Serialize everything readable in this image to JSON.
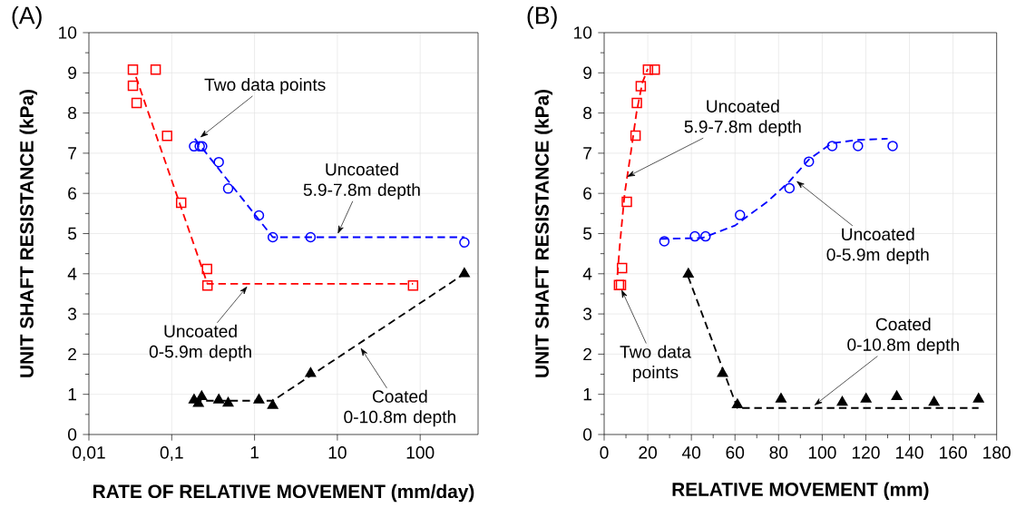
{
  "chart_data": [
    {
      "type": "scatter",
      "title": "(A)",
      "xlabel": "RATE OF RELATIVE MOVEMENT (mm/day)",
      "ylabel": "UNIT SHAFT RESISTANCE (kPa)",
      "log": "x",
      "grid": true,
      "xlim": [
        0.01,
        500
      ],
      "ylim": [
        0,
        10
      ],
      "xticks": [
        {
          "value": 0.01,
          "label": "0,01"
        },
        {
          "value": 0.1,
          "label": "0,1"
        },
        1,
        10,
        100
      ],
      "yticks": [
        0,
        1,
        2,
        3,
        4,
        5,
        6,
        7,
        8,
        9,
        10
      ],
      "series": [
        {
          "marker": "square",
          "color": "#ff0000",
          "x": [
            0.034,
            0.034,
            0.0377,
            0.064,
            0.088,
            0.13,
            0.267,
            0.27,
            82
          ],
          "values": [
            9.08,
            8.68,
            8.25,
            9.08,
            7.43,
            5.77,
            4.12,
            3.71,
            3.71
          ]
        },
        {
          "type": "line",
          "line_style": "dashed",
          "color": "#ff0000",
          "x": [
            0.037,
            0.27,
            82
          ],
          "values": [
            8.9,
            3.75,
            3.75
          ]
        },
        {
          "marker": "circle",
          "color": "#0000ff",
          "x": [
            0.186,
            0.218,
            0.233,
            0.37,
            0.48,
            1.13,
            1.66,
            4.75,
            342
          ],
          "values": [
            7.17,
            7.17,
            7.17,
            6.78,
            6.12,
            5.45,
            4.91,
            4.91,
            4.78
          ]
        },
        {
          "type": "line",
          "line_style": "dashed",
          "color": "#0000ff",
          "x": [
            0.19,
            1.66,
            342
          ],
          "values": [
            7.36,
            4.91,
            4.91
          ]
        },
        {
          "marker": "triangle",
          "color": "#000000",
          "x": [
            0.186,
            0.21,
            0.23,
            0.37,
            0.48,
            1.13,
            1.66,
            4.75,
            342
          ],
          "values": [
            0.86,
            0.77,
            0.94,
            0.86,
            0.78,
            0.86,
            0.72,
            1.52,
            4.0
          ]
        },
        {
          "type": "line",
          "line_style": "dashed",
          "color": "#000000",
          "x": [
            0.186,
            1.66,
            342
          ],
          "values": [
            0.84,
            0.84,
            4.0
          ]
        }
      ],
      "annotations": [
        {
          "text": "Two data points",
          "x": 0.22,
          "y": 7.39
        },
        {
          "text": "Uncoated 5.9-7.8m depth",
          "x": 10.1,
          "y": 4.99
        },
        {
          "text": "Uncoated 0-5.9m depth",
          "x": 0.82,
          "y": 3.69
        },
        {
          "text": "Coated 0-10.8m depth",
          "x": 19.1,
          "y": 2.16
        }
      ]
    },
    {
      "type": "scatter",
      "title": "(B)",
      "xlabel": "RELATIVE MOVEMENT (mm)",
      "ylabel": "UNIT SHAFT RESISTANCE (kPa)",
      "grid": true,
      "xlim": [
        0,
        180
      ],
      "ylim": [
        0,
        10
      ],
      "xticks": [
        0,
        20,
        40,
        60,
        80,
        100,
        120,
        140,
        160,
        180
      ],
      "yticks": [
        0,
        1,
        2,
        3,
        4,
        5,
        6,
        7,
        8,
        9,
        10
      ],
      "series": [
        {
          "marker": "square",
          "color": "#ff0000",
          "x": [
            6.8,
            7.7,
            8.2,
            10.4,
            14.4,
            15.0,
            16.8,
            20.1,
            23.2
          ],
          "values": [
            3.72,
            3.72,
            4.14,
            5.79,
            7.44,
            8.25,
            8.67,
            9.08,
            9.08
          ]
        },
        {
          "type": "line",
          "line_style": "dashed",
          "color": "#ff0000",
          "x": [
            6.1,
            7.1,
            9.4,
            12.3,
            14.8,
            17.5,
            20
          ],
          "values": [
            3.97,
            4.67,
            5.99,
            7.04,
            8.0,
            8.75,
            9.1
          ]
        },
        {
          "marker": "circle",
          "color": "#0000ff",
          "x": [
            27.6,
            41.6,
            46.5,
            62.3,
            85.0,
            93.9,
            104.6,
            116.4,
            132.3
          ],
          "values": [
            4.81,
            4.93,
            4.93,
            5.46,
            6.13,
            6.79,
            7.18,
            7.18,
            7.18
          ]
        },
        {
          "type": "line",
          "line_style": "dashed",
          "color": "#0000ff",
          "x": [
            26,
            45,
            60,
            75,
            85,
            94,
            104.5,
            116.4,
            130
          ],
          "values": [
            4.87,
            4.89,
            5.2,
            5.8,
            6.3,
            6.85,
            7.25,
            7.33,
            7.36
          ]
        },
        {
          "marker": "triangle",
          "color": "#000000",
          "x": [
            38.6,
            54.3,
            61.1,
            81.1,
            109.2,
            120.1,
            134.2,
            151.3,
            171.7
          ],
          "values": [
            3.99,
            1.52,
            0.74,
            0.88,
            0.8,
            0.88,
            0.94,
            0.8,
            0.88
          ]
        },
        {
          "type": "line",
          "line_style": "dashed",
          "color": "#000000",
          "x": [
            38.5,
            61.1,
            171.7
          ],
          "values": [
            3.93,
            0.66,
            0.66
          ]
        }
      ],
      "annotations": [
        {
          "text": "Uncoated 5.9-7.8m depth",
          "x": 10.4,
          "y": 6.41
        },
        {
          "text": "Uncoated 0-5.9m depth",
          "x": 88.1,
          "y": 6.31
        },
        {
          "text": "Two data points",
          "x": 7.9,
          "y": 3.61
        },
        {
          "text": "Coated 0-10.8m depth",
          "x": 96.3,
          "y": 0.72
        }
      ]
    }
  ]
}
